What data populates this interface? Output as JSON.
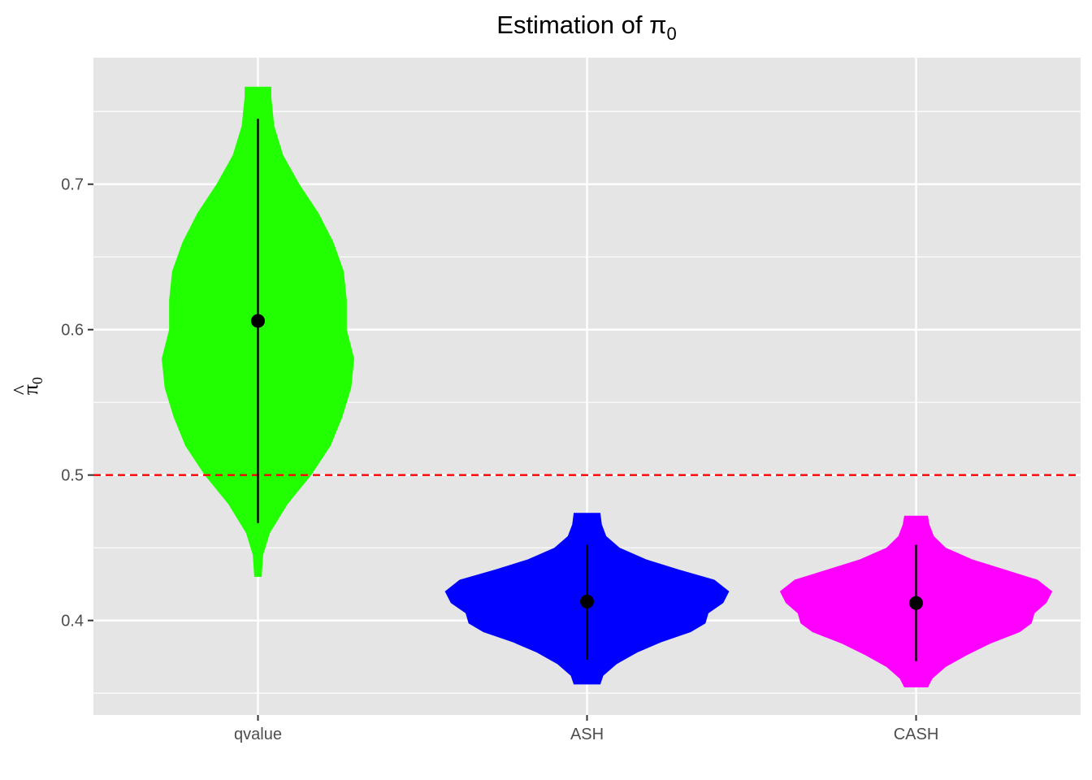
{
  "chart_data": {
    "type": "violin",
    "title": "Estimation of π",
    "title_subscript": "0",
    "xlabel": "",
    "ylabel": "π",
    "ylabel_hat": "^",
    "ylabel_subscript": "0",
    "ylim": [
      0.335,
      0.787
    ],
    "yticks": [
      0.4,
      0.5,
      0.6,
      0.7
    ],
    "ytick_labels": [
      "0.4",
      "0.5",
      "0.6",
      "0.7"
    ],
    "ygrid_minor": [
      0.35,
      0.45,
      0.55,
      0.65,
      0.75
    ],
    "categories": [
      "qvalue",
      "ASH",
      "CASH"
    ],
    "reference_line": {
      "y": 0.5,
      "color": "#ff0000",
      "style": "dashed"
    },
    "background": "#e5e5e5",
    "grid": true,
    "series": [
      {
        "category": "qvalue",
        "color": "#22ff00",
        "point": 0.606,
        "interval": [
          0.467,
          0.745
        ],
        "density": [
          [
            0.43,
            0.025
          ],
          [
            0.445,
            0.035
          ],
          [
            0.46,
            0.08
          ],
          [
            0.48,
            0.2
          ],
          [
            0.5,
            0.36
          ],
          [
            0.52,
            0.49
          ],
          [
            0.54,
            0.57
          ],
          [
            0.56,
            0.63
          ],
          [
            0.58,
            0.65
          ],
          [
            0.6,
            0.6
          ],
          [
            0.62,
            0.6
          ],
          [
            0.64,
            0.58
          ],
          [
            0.66,
            0.51
          ],
          [
            0.68,
            0.41
          ],
          [
            0.7,
            0.28
          ],
          [
            0.72,
            0.17
          ],
          [
            0.74,
            0.11
          ],
          [
            0.76,
            0.09
          ],
          [
            0.767,
            0.09
          ]
        ]
      },
      {
        "category": "ASH",
        "color": "#0000ff",
        "point": 0.413,
        "interval": [
          0.373,
          0.452
        ],
        "density": [
          [
            0.356,
            0.09
          ],
          [
            0.362,
            0.11
          ],
          [
            0.37,
            0.2
          ],
          [
            0.378,
            0.34
          ],
          [
            0.385,
            0.5
          ],
          [
            0.392,
            0.7
          ],
          [
            0.398,
            0.8
          ],
          [
            0.405,
            0.82
          ],
          [
            0.412,
            0.92
          ],
          [
            0.42,
            0.96
          ],
          [
            0.428,
            0.86
          ],
          [
            0.435,
            0.62
          ],
          [
            0.442,
            0.4
          ],
          [
            0.45,
            0.22
          ],
          [
            0.458,
            0.13
          ],
          [
            0.466,
            0.1
          ],
          [
            0.474,
            0.09
          ]
        ]
      },
      {
        "category": "CASH",
        "color": "#ff00ff",
        "point": 0.412,
        "interval": [
          0.372,
          0.452
        ],
        "density": [
          [
            0.354,
            0.08
          ],
          [
            0.36,
            0.11
          ],
          [
            0.368,
            0.2
          ],
          [
            0.376,
            0.34
          ],
          [
            0.384,
            0.5
          ],
          [
            0.392,
            0.7
          ],
          [
            0.398,
            0.78
          ],
          [
            0.405,
            0.8
          ],
          [
            0.412,
            0.88
          ],
          [
            0.42,
            0.92
          ],
          [
            0.428,
            0.82
          ],
          [
            0.435,
            0.6
          ],
          [
            0.442,
            0.38
          ],
          [
            0.45,
            0.2
          ],
          [
            0.458,
            0.12
          ],
          [
            0.466,
            0.09
          ],
          [
            0.472,
            0.08
          ]
        ]
      }
    ]
  }
}
